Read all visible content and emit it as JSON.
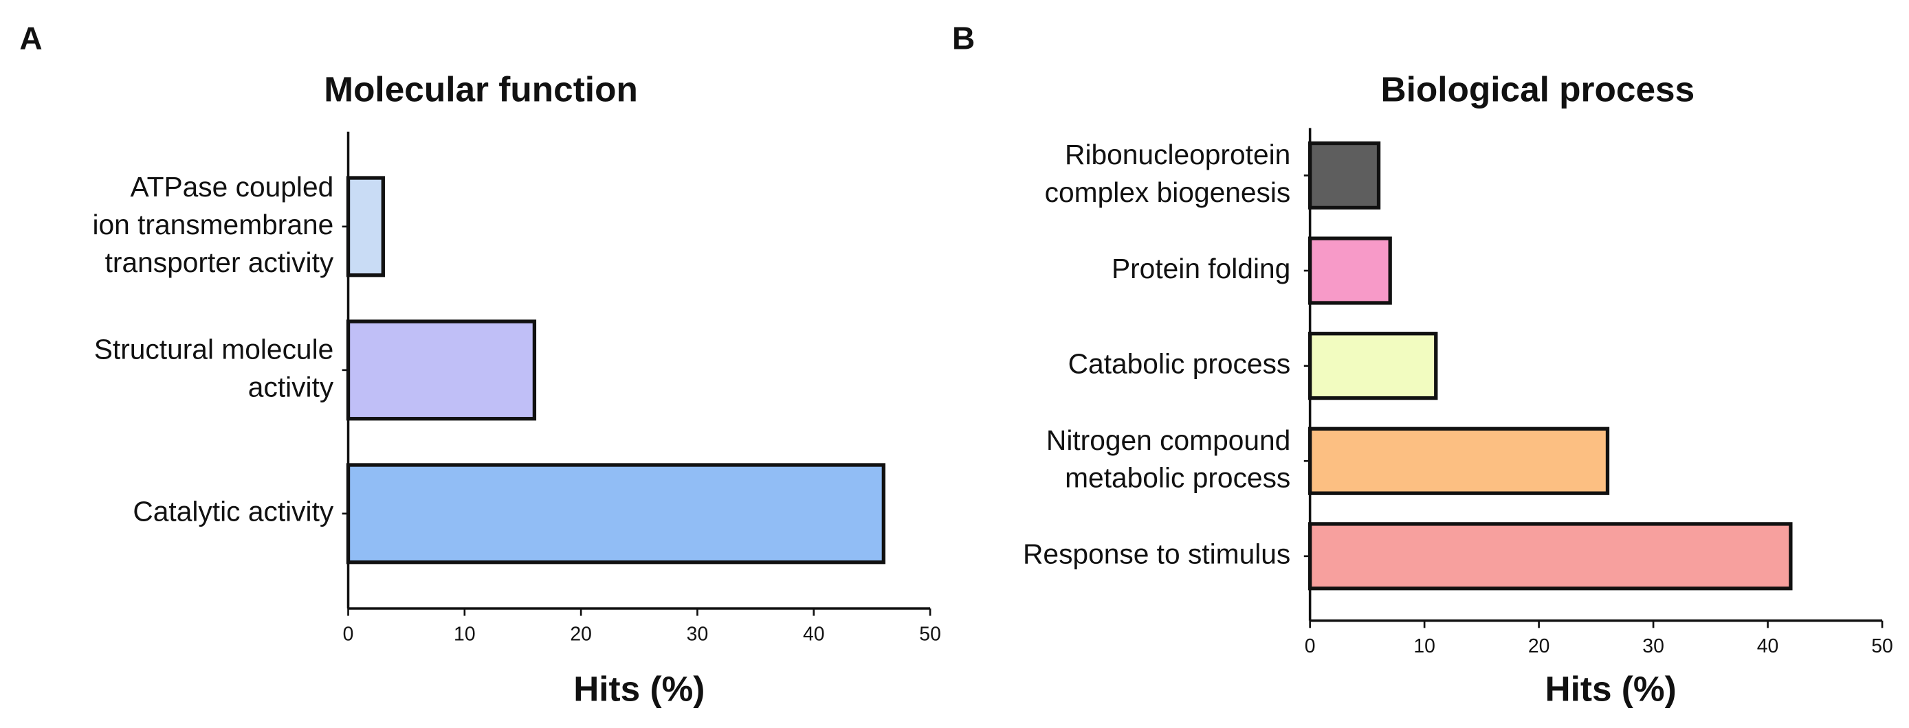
{
  "chart_data": [
    {
      "type": "bar",
      "orientation": "horizontal",
      "panel_label": "A",
      "title": "Molecular function",
      "x_label": "Hits (%)",
      "categories": [
        "ATPase coupled\nion transmembrane\ntransporter activity",
        "Structural molecule\nactivity",
        "Catalytic activity"
      ],
      "values": [
        3,
        16,
        46
      ],
      "colors": [
        "#c9dcf5",
        "#c0bff7",
        "#91bdf5"
      ],
      "xlim": [
        0,
        50
      ],
      "xticks": [
        0,
        10,
        20,
        30,
        40,
        50
      ]
    },
    {
      "type": "bar",
      "orientation": "horizontal",
      "panel_label": "B",
      "title": "Biological process",
      "x_label": "Hits (%)",
      "categories": [
        "Ribonucleoprotein\ncomplex biogenesis",
        "Protein folding",
        "Catabolic process",
        "Nitrogen compound\nmetabolic process",
        "Response to stimulus"
      ],
      "values": [
        6,
        7,
        11,
        26,
        42
      ],
      "colors": [
        "#5e5e5e",
        "#f79ac8",
        "#f2fcc0",
        "#fcbf82",
        "#f7a09e"
      ],
      "xlim": [
        0,
        50
      ],
      "xticks": [
        0,
        10,
        20,
        30,
        40,
        50
      ]
    }
  ]
}
